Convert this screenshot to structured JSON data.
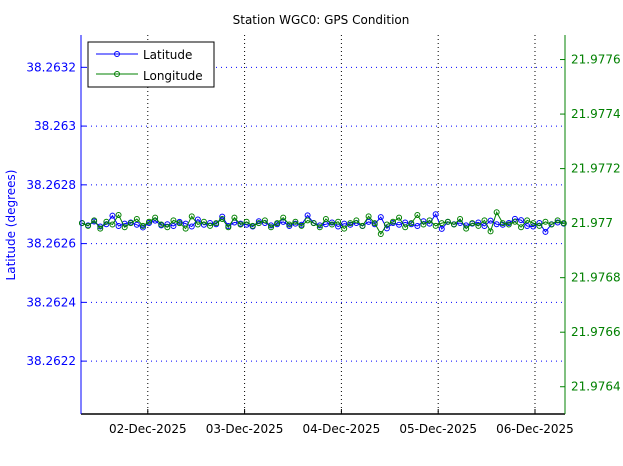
{
  "chart_data": {
    "type": "line",
    "title": "Station WGC0: GPS Condition",
    "ylabel": "Latitude (degrees)",
    "ylabel_right": "",
    "xlabel": "",
    "xlim_days_dec2025": [
      1.31,
      6.31
    ],
    "ylim": [
      38.26202,
      38.26331
    ],
    "ylim_right": [
      21.9763,
      21.97769
    ],
    "xticks": [
      {
        "day": 2,
        "label": "02-Dec-2025"
      },
      {
        "day": 3,
        "label": "03-Dec-2025"
      },
      {
        "day": 4,
        "label": "04-Dec-2025"
      },
      {
        "day": 5,
        "label": "05-Dec-2025"
      },
      {
        "day": 6,
        "label": "06-Dec-2025"
      }
    ],
    "yticks": [
      {
        "v": 38.2622,
        "label": "38.2622"
      },
      {
        "v": 38.2624,
        "label": "38.2624"
      },
      {
        "v": 38.2626,
        "label": "38.2626"
      },
      {
        "v": 38.2628,
        "label": "38.2628"
      },
      {
        "v": 38.263,
        "label": "38.263"
      },
      {
        "v": 38.2632,
        "label": "38.2632"
      }
    ],
    "yticks_right": [
      {
        "v": 21.9764,
        "label": "21.9764"
      },
      {
        "v": 21.9766,
        "label": "21.9766"
      },
      {
        "v": 21.9768,
        "label": "21.9768"
      },
      {
        "v": 21.977,
        "label": "21.977"
      },
      {
        "v": 21.9772,
        "label": "21.9772"
      },
      {
        "v": 21.9774,
        "label": "21.9774"
      },
      {
        "v": 21.9776,
        "label": "21.9776"
      }
    ],
    "grid": true,
    "legend_position": "top-left",
    "x": [
      1.32,
      1.383,
      1.446,
      1.509,
      1.572,
      1.635,
      1.698,
      1.761,
      1.824,
      1.887,
      1.95,
      2.013,
      2.076,
      2.139,
      2.202,
      2.265,
      2.328,
      2.391,
      2.454,
      2.517,
      2.58,
      2.643,
      2.706,
      2.769,
      2.832,
      2.895,
      2.958,
      3.021,
      3.084,
      3.147,
      3.21,
      3.273,
      3.336,
      3.399,
      3.462,
      3.525,
      3.588,
      3.651,
      3.714,
      3.777,
      3.84,
      3.903,
      3.966,
      4.029,
      4.092,
      4.155,
      4.218,
      4.281,
      4.344,
      4.407,
      4.47,
      4.533,
      4.596,
      4.659,
      4.722,
      4.785,
      4.848,
      4.911,
      4.974,
      5.037,
      5.1,
      5.163,
      5.226,
      5.289,
      5.352,
      5.415,
      5.478,
      5.541,
      5.604,
      5.667,
      5.73,
      5.793,
      5.856,
      5.919,
      5.982,
      6.045,
      6.108,
      6.171,
      6.234,
      6.297
    ],
    "series": [
      {
        "name": "Latitude",
        "axis": "left",
        "color": "#0000ff",
        "values": [
          38.26267,
          38.262662,
          38.262675,
          38.262658,
          38.262666,
          38.262695,
          38.26266,
          38.262668,
          38.262672,
          38.262664,
          38.262655,
          38.26267,
          38.262678,
          38.262662,
          38.262666,
          38.26266,
          38.262674,
          38.262668,
          38.262658,
          38.262682,
          38.262664,
          38.26267,
          38.262666,
          38.262692,
          38.26266,
          38.262672,
          38.262668,
          38.262664,
          38.262658,
          38.262676,
          38.26267,
          38.262662,
          38.262666,
          38.262674,
          38.26266,
          38.262668,
          38.262664,
          38.262696,
          38.26267,
          38.262662,
          38.262666,
          38.262672,
          38.262658,
          38.262668,
          38.262664,
          38.26267,
          38.26266,
          38.262674,
          38.262666,
          38.26269,
          38.262652,
          38.26267,
          38.262664,
          38.262672,
          38.262666,
          38.26266,
          38.262676,
          38.262668,
          38.2627,
          38.26265,
          38.262674,
          38.262666,
          38.26267,
          38.262662,
          38.262668,
          38.262672,
          38.26266,
          38.262678,
          38.262666,
          38.262664,
          38.26267,
          38.262684,
          38.26268,
          38.26266,
          38.262658,
          38.26267,
          38.26264,
          38.262666,
          38.262672,
          38.262668
        ]
      },
      {
        "name": "Longitude",
        "axis": "right",
        "color": "#008000",
        "values": [
          21.977,
          21.97699,
          21.97701,
          21.97698,
          21.977005,
          21.976995,
          21.97703,
          21.976985,
          21.977,
          21.977015,
          21.97699,
          21.977005,
          21.97702,
          21.976995,
          21.976985,
          21.97701,
          21.977,
          21.97698,
          21.977025,
          21.976995,
          21.977005,
          21.97699,
          21.977,
          21.977015,
          21.976985,
          21.97702,
          21.976995,
          21.977005,
          21.97699,
          21.977,
          21.97701,
          21.976985,
          21.977,
          21.97702,
          21.976995,
          21.977005,
          21.97699,
          21.97701,
          21.977,
          21.976985,
          21.977015,
          21.976995,
          21.977005,
          21.97698,
          21.977,
          21.97701,
          21.97699,
          21.977025,
          21.977,
          21.97696,
          21.976995,
          21.977005,
          21.97702,
          21.976985,
          21.977,
          21.97703,
          21.976995,
          21.97701,
          21.97699,
          21.977,
          21.977005,
          21.976995,
          21.977015,
          21.97698,
          21.977,
          21.97699,
          21.97701,
          21.97697,
          21.97704,
          21.977,
          21.976995,
          21.977005,
          21.976985,
          21.97701,
          21.977,
          21.97699,
          21.977005,
          21.976995,
          21.97701,
          21.977
        ]
      }
    ]
  }
}
